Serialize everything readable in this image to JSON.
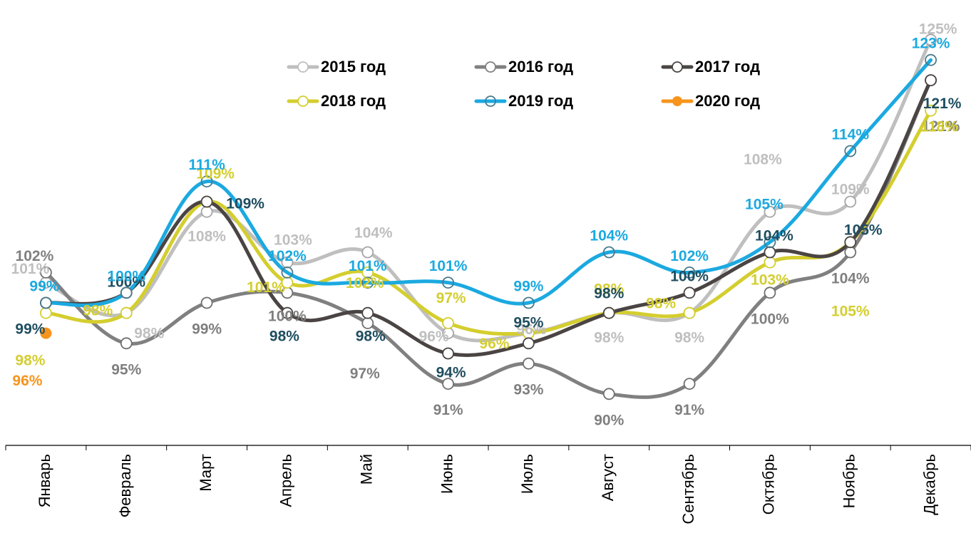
{
  "chart_data": {
    "type": "line",
    "title": "",
    "xlabel": "",
    "ylabel": "",
    "grid": false,
    "legend_position": "top-center",
    "categories": [
      "Январь",
      "Февраль",
      "Март",
      "Апрель",
      "Май",
      "Июнь",
      "Июль",
      "Август",
      "Сентябрь",
      "Октябрь",
      "Ноябрь",
      "Декабрь"
    ],
    "unit": "%",
    "series": [
      {
        "name": "2015 год",
        "color": "#BFBFBF",
        "label_color": "#BFBFBF",
        "marker": "hollow",
        "values": [
          101,
          98,
          108,
          103,
          104,
          96,
          96,
          98,
          98,
          108,
          109,
          125
        ]
      },
      {
        "name": "2016 год",
        "color": "#808080",
        "label_color": "#7F7F7F",
        "marker": "hollow",
        "values": [
          102,
          95,
          99,
          100,
          97,
          91,
          93,
          90,
          91,
          100,
          104,
          121
        ]
      },
      {
        "name": "2017 год",
        "color": "#4A4443",
        "label_color": "#1F4E5F",
        "marker": "hollow",
        "values": [
          99,
          100,
          109,
          98,
          98,
          94,
          95,
          98,
          100,
          104,
          105,
          121
        ]
      },
      {
        "name": "2018 год",
        "color": "#D4CE2F",
        "label_color": "#D4CE2F",
        "marker": "hollow",
        "values": [
          98,
          98,
          109,
          101,
          102,
          97,
          96,
          98,
          98,
          103,
          105,
          118
        ]
      },
      {
        "name": "2019 год",
        "color": "#1BA9E0",
        "label_color": "#1BA9E0",
        "marker": "hollow-blue",
        "values": [
          99,
          100,
          111,
          102,
          101,
          101,
          99,
          104,
          102,
          105,
          114,
          123
        ]
      },
      {
        "name": "2020 год",
        "color": "#F7941D",
        "label_color": "#F7941D",
        "marker": "filled",
        "values": [
          96,
          null,
          null,
          null,
          null,
          null,
          null,
          null,
          null,
          null,
          null,
          null
        ]
      }
    ]
  }
}
